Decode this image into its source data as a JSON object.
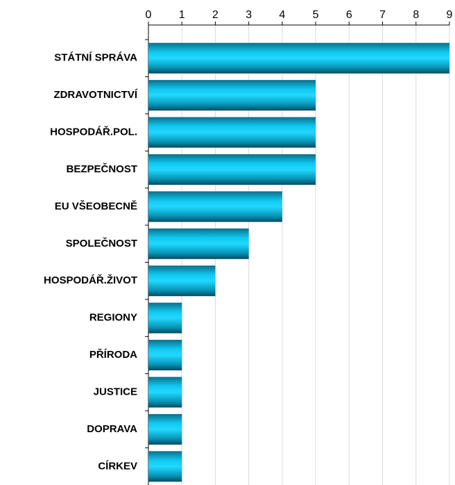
{
  "chart_data": {
    "type": "bar",
    "orientation": "horizontal",
    "categories": [
      "STÁTNÍ SPRÁVA",
      "ZDRAVOTNICTVÍ",
      "HOSPODÁŘ.POL.",
      "BEZPEČNOST",
      "EU VŠEOBECNĚ",
      "SPOLEČNOST",
      "HOSPODÁŘ.ŽIVOT",
      "REGIONY",
      "PŘÍRODA",
      "JUSTICE",
      "DOPRAVA",
      "CÍRKEV"
    ],
    "values": [
      9,
      5,
      5,
      5,
      4,
      3,
      2,
      1,
      1,
      1,
      1,
      1
    ],
    "color": "#00ccff",
    "xlim": [
      0,
      9
    ],
    "xticks": [
      0,
      1,
      2,
      3,
      4,
      5,
      6,
      7,
      8,
      9
    ],
    "grid": true
  }
}
